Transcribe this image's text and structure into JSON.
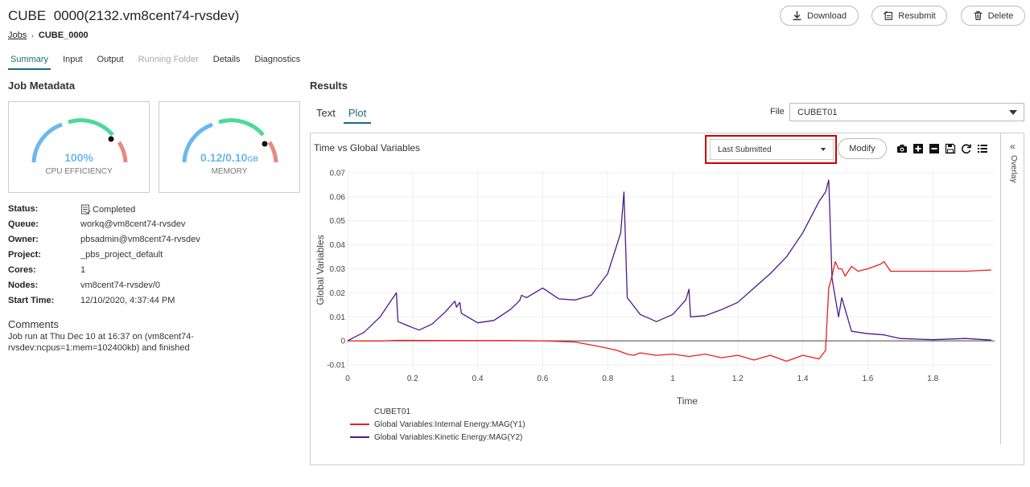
{
  "header": {
    "title_prefix": "CUBE",
    "title_main": "0000(2132.vm8cent74-rvsdev)",
    "breadcrumb_jobs": "Jobs",
    "breadcrumb_sep": "›",
    "breadcrumb_current": "CUBE_0000",
    "download_label": "Download",
    "resubmit_label": "Resubmit",
    "delete_label": "Delete"
  },
  "tabs": [
    "Summary",
    "Input",
    "Output",
    "Running Folder",
    "Details",
    "Diagnostics"
  ],
  "job_metadata": {
    "title": "Job Metadata",
    "cpu": {
      "value": "100%",
      "label": "CPU EFFICIENCY",
      "level": 1.0
    },
    "memory": {
      "value": "0.12/0.10",
      "unit": "GB",
      "label": "MEMORY",
      "level": 1.2
    },
    "rows": [
      {
        "key": "Status:",
        "value": "Completed"
      },
      {
        "key": "Queue:",
        "value": "workq@vm8cent74-rvsdev"
      },
      {
        "key": "Owner:",
        "value": "pbsadmin@vm8cent74-rvsdev"
      },
      {
        "key": "Project:",
        "value": "_pbs_project_default"
      },
      {
        "key": "Cores:",
        "value": "1"
      },
      {
        "key": "Nodes:",
        "value": "vm8cent74-rvsdev/0"
      },
      {
        "key": "Start Time:",
        "value": "12/10/2020, 4:37:44 PM"
      }
    ],
    "comments_title": "Comments",
    "comments_text": "Job run at Thu Dec 10 at 16:37 on (vm8cent74-rvsdev:ncpus=1:mem=102400kb) and finished"
  },
  "results": {
    "title": "Results",
    "sub_tabs": [
      "Text",
      "Plot"
    ],
    "file_label": "File",
    "file_value": "CUBET01",
    "plot_title": "Time vs Global Variables",
    "selection": "Last Submitted",
    "modify_label": "Modify",
    "overlay_label": "Overlay",
    "overlay_chevron": "«",
    "toolbar_icons": [
      "camera-icon",
      "zoom-in-icon",
      "zoom-out-icon",
      "save-icon",
      "reset-icon",
      "list-icon"
    ],
    "legend_title": "CUBET01"
  },
  "colors": {
    "accent": "#1b6b7a",
    "series1": "#ee1c1c",
    "series2": "#4b1a8c",
    "gauge_blue": "#6bb8ef",
    "gauge_green": "#4cd99a",
    "gauge_red": "#e88a80",
    "highlight": "#cc0000"
  },
  "chart_data": {
    "type": "line",
    "title": "",
    "xlabel": "Time",
    "ylabel": "Global Variables",
    "xlim": [
      0,
      1.99
    ],
    "ylim": [
      -0.012,
      0.071
    ],
    "x_ticks": [
      0,
      0.2,
      0.4,
      0.6,
      0.8,
      1,
      1.2,
      1.4,
      1.6,
      1.8
    ],
    "y_ticks": [
      -0.01,
      0,
      0.01,
      0.02,
      0.03,
      0.04,
      0.05,
      0.06,
      0.07
    ],
    "grid": true,
    "legend_position": "bottom-left",
    "series": [
      {
        "name": "Global Variables:Internal Energy:MAG(Y1)",
        "color": "#ee1c1c",
        "x": [
          0,
          0.1,
          0.15,
          0.3,
          0.5,
          0.6,
          0.7,
          0.78,
          0.83,
          0.86,
          0.88,
          0.9,
          0.95,
          1.0,
          1.05,
          1.1,
          1.15,
          1.2,
          1.25,
          1.3,
          1.35,
          1.4,
          1.45,
          1.47,
          1.48,
          1.49,
          1.5,
          1.51,
          1.52,
          1.53,
          1.55,
          1.57,
          1.6,
          1.62,
          1.64,
          1.65,
          1.67,
          1.7,
          1.8,
          1.9,
          1.98
        ],
        "y": [
          0,
          -0.0001,
          0.0002,
          0.0001,
          0.0001,
          0.0,
          -0.0005,
          -0.0025,
          -0.004,
          -0.0055,
          -0.006,
          -0.005,
          -0.006,
          -0.0055,
          -0.0065,
          -0.0055,
          -0.007,
          -0.006,
          -0.008,
          -0.006,
          -0.0085,
          -0.006,
          -0.0075,
          -0.004,
          0.022,
          0.027,
          0.033,
          0.03,
          0.03,
          0.027,
          0.031,
          0.029,
          0.03,
          0.031,
          0.032,
          0.033,
          0.029,
          0.029,
          0.029,
          0.029,
          0.0295
        ]
      },
      {
        "name": "Global Variables:Kinetic Energy:MAG(Y2)",
        "color": "#4b1a8c",
        "x": [
          0,
          0.02,
          0.05,
          0.1,
          0.13,
          0.15,
          0.155,
          0.2,
          0.22,
          0.26,
          0.3,
          0.33,
          0.335,
          0.345,
          0.35,
          0.4,
          0.45,
          0.5,
          0.52,
          0.53,
          0.535,
          0.55,
          0.6,
          0.65,
          0.7,
          0.75,
          0.8,
          0.84,
          0.85,
          0.86,
          0.9,
          0.95,
          1.0,
          1.04,
          1.05,
          1.055,
          1.1,
          1.15,
          1.2,
          1.25,
          1.3,
          1.35,
          1.4,
          1.45,
          1.47,
          1.48,
          1.49,
          1.5,
          1.51,
          1.52,
          1.55,
          1.6,
          1.65,
          1.7,
          1.8,
          1.9,
          1.98
        ],
        "y": [
          0,
          0.0015,
          0.0035,
          0.01,
          0.016,
          0.02,
          0.008,
          0.0055,
          0.0045,
          0.007,
          0.012,
          0.0165,
          0.014,
          0.016,
          0.0115,
          0.0075,
          0.0085,
          0.013,
          0.0155,
          0.017,
          0.019,
          0.018,
          0.022,
          0.0175,
          0.017,
          0.019,
          0.028,
          0.045,
          0.062,
          0.018,
          0.011,
          0.008,
          0.011,
          0.017,
          0.0215,
          0.01,
          0.0105,
          0.013,
          0.016,
          0.022,
          0.028,
          0.035,
          0.045,
          0.058,
          0.062,
          0.067,
          0.026,
          0.018,
          0.01,
          0.018,
          0.004,
          0.003,
          0.0025,
          0.001,
          0.0005,
          0.001,
          0.0003
        ]
      }
    ]
  }
}
